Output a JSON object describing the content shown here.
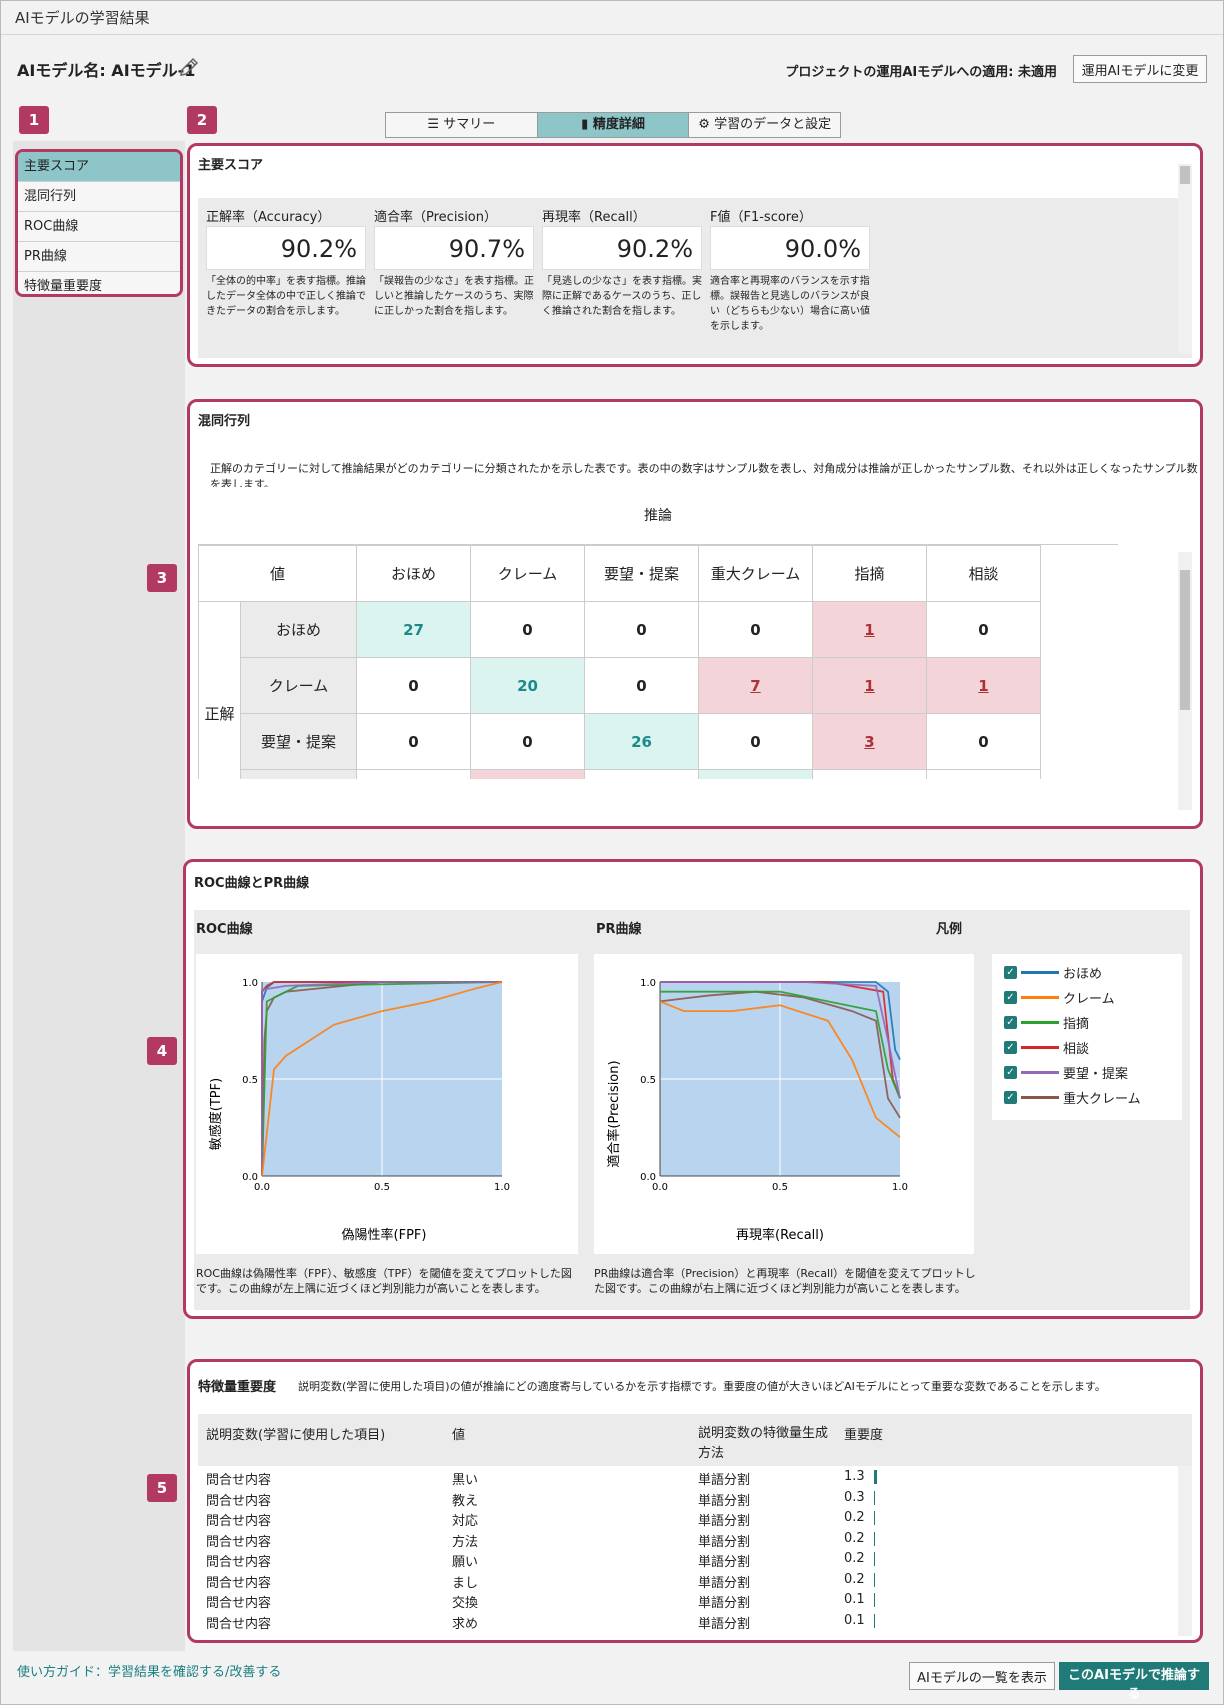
{
  "window": {
    "title": "AIモデルの学習結果"
  },
  "header": {
    "model_label": "AIモデル名: AIモデル-1",
    "apply_status": "プロジェクトの運用AIモデルへの適用: 未適用",
    "apply_button": "運用AIモデルに変更"
  },
  "markers": [
    "1",
    "2",
    "3",
    "4",
    "5"
  ],
  "tabs": [
    {
      "label": "サマリー",
      "icon": "list-icon"
    },
    {
      "label": "精度詳細",
      "icon": "bar-chart-icon",
      "active": true
    },
    {
      "label": "学習のデータと設定",
      "icon": "gear-icon"
    }
  ],
  "sidebar": {
    "items": [
      {
        "label": "主要スコア",
        "active": true
      },
      {
        "label": "混同行列"
      },
      {
        "label": "ROC曲線"
      },
      {
        "label": "PR曲線"
      },
      {
        "label": "特徴量重要度"
      }
    ]
  },
  "scores": {
    "title": "主要スコア",
    "items": [
      {
        "label": "正解率（Accuracy）",
        "value": "90.2%",
        "desc": "「全体の的中率」を表す指標。推論したデータ全体の中で正しく推論できたデータの割合を示します。"
      },
      {
        "label": "適合率（Precision）",
        "value": "90.7%",
        "desc": "「誤報告の少なさ」を表す指標。正しいと推論したケースのうち、実際に正しかった割合を指します。"
      },
      {
        "label": "再現率（Recall）",
        "value": "90.2%",
        "desc": "「見逃しの少なさ」を表す指標。実際に正解であるケースのうち、正しく推論された割合を指します。"
      },
      {
        "label": "F値（F1-score）",
        "value": "90.0%",
        "desc": "適合率と再現率のバランスを示す指標。誤報告と見逃しのバランスが良い（どちらも少ない）場合に高い値を示します。"
      }
    ]
  },
  "confusion": {
    "title": "混同行列",
    "desc": "正解のカテゴリーに対して推論結果がどのカテゴリーに分類されたかを示した表です。表の中の数字はサンプル数を表し、対角成分は推論が正しかったサンプル数、それ以外は正しくなったサンプル数を表します。",
    "pred_label": "推論",
    "value_label": "値",
    "true_label": "正解",
    "columns": [
      "おほめ",
      "クレーム",
      "要望・提案",
      "重大クレーム",
      "指摘",
      "相談"
    ],
    "rows": [
      {
        "label": "おほめ",
        "values": [
          "27",
          "0",
          "0",
          "0",
          "1",
          "0"
        ]
      },
      {
        "label": "クレーム",
        "values": [
          "0",
          "20",
          "0",
          "7",
          "1",
          "1"
        ]
      },
      {
        "label": "要望・提案",
        "values": [
          "0",
          "0",
          "26",
          "0",
          "3",
          "0"
        ]
      }
    ]
  },
  "curves": {
    "title": "ROC曲線とPR曲線",
    "roc_title": "ROC曲線",
    "pr_title": "PR曲線",
    "legend_title": "凡例",
    "roc_xlabel": "偽陽性率(FPF)",
    "roc_ylabel": "敏感度(TPF)",
    "pr_xlabel": "再現率(Recall)",
    "pr_ylabel": "適合率(Precision)",
    "ticks": [
      "0.0",
      "0.5",
      "1.0"
    ],
    "roc_desc": "ROC曲線は偽陽性率（FPF）、敏感度（TPF）を閾値を変えてプロットした図です。この曲線が左上隅に近づくほど判別能力が高いことを表します。",
    "pr_desc": "PR曲線は適合率（Precision）と再現率（Recall）を閾値を変えてプロットした図です。この曲線が右上隅に近づくほど判別能力が高いことを表します。",
    "legend": [
      {
        "name": "おほめ",
        "color": "#1f77b4"
      },
      {
        "name": "クレーム",
        "color": "#ff7f0e"
      },
      {
        "name": "指摘",
        "color": "#2ca02c"
      },
      {
        "name": "相談",
        "color": "#d62728"
      },
      {
        "name": "要望・提案",
        "color": "#9467bd"
      },
      {
        "name": "重大クレーム",
        "color": "#8c564b"
      }
    ]
  },
  "chart_data": [
    {
      "type": "line",
      "title": "ROC曲線",
      "xlabel": "偽陽性率(FPF)",
      "ylabel": "敏感度(TPF)",
      "xlim": [
        0,
        1
      ],
      "ylim": [
        0,
        1
      ],
      "series": [
        {
          "name": "おほめ",
          "x": [
            0,
            0,
            0.02,
            0.05,
            1
          ],
          "y": [
            0,
            0.9,
            0.97,
            1,
            1
          ]
        },
        {
          "name": "重大クレーム",
          "x": [
            0,
            0.01,
            0.02,
            0.05,
            0.1,
            0.5,
            1
          ],
          "y": [
            0,
            0.7,
            0.85,
            0.92,
            0.95,
            1,
            1
          ]
        },
        {
          "name": "相談",
          "x": [
            0,
            0,
            0.02,
            0.05,
            1
          ],
          "y": [
            0,
            0.95,
            0.98,
            1,
            1
          ]
        },
        {
          "name": "指摘",
          "x": [
            0,
            0.02,
            0.1,
            0.15,
            1
          ],
          "y": [
            0,
            0.9,
            0.95,
            0.98,
            1
          ]
        },
        {
          "name": "要望・提案",
          "x": [
            0,
            0,
            0.1,
            0.5,
            1
          ],
          "y": [
            0,
            0.96,
            0.98,
            1,
            1
          ]
        },
        {
          "name": "クレーム",
          "x": [
            0,
            0.05,
            0.1,
            0.2,
            0.3,
            0.5,
            0.7,
            0.9,
            1
          ],
          "y": [
            0,
            0.55,
            0.62,
            0.7,
            0.78,
            0.85,
            0.9,
            0.97,
            1
          ]
        }
      ]
    },
    {
      "type": "line",
      "title": "PR曲線",
      "xlabel": "再現率(Recall)",
      "ylabel": "適合率(Precision)",
      "xlim": [
        0,
        1
      ],
      "ylim": [
        0,
        1
      ],
      "series": [
        {
          "name": "おほめ",
          "x": [
            0,
            0.5,
            0.9,
            0.95,
            0.98,
            1
          ],
          "y": [
            1,
            1,
            1,
            0.95,
            0.65,
            0.6
          ]
        },
        {
          "name": "相談",
          "x": [
            0,
            0.7,
            0.93,
            0.97,
            1
          ],
          "y": [
            1,
            1,
            0.95,
            0.5,
            0.4
          ]
        },
        {
          "name": "重大クレーム",
          "x": [
            0,
            0.2,
            0.4,
            0.6,
            0.8,
            0.9,
            0.95,
            1
          ],
          "y": [
            0.9,
            0.93,
            0.95,
            0.92,
            0.85,
            0.8,
            0.4,
            0.3
          ]
        },
        {
          "name": "指摘",
          "x": [
            0,
            0.5,
            0.7,
            0.9,
            0.95,
            1
          ],
          "y": [
            0.95,
            0.95,
            0.9,
            0.85,
            0.55,
            0.4
          ]
        },
        {
          "name": "要望・提案",
          "x": [
            0,
            0.6,
            0.9,
            0.95,
            1
          ],
          "y": [
            1,
            1,
            0.98,
            0.7,
            0.4
          ]
        },
        {
          "name": "クレーム",
          "x": [
            0,
            0.1,
            0.3,
            0.5,
            0.7,
            0.8,
            0.9,
            1
          ],
          "y": [
            0.9,
            0.85,
            0.85,
            0.88,
            0.8,
            0.6,
            0.3,
            0.2
          ]
        }
      ]
    },
    {
      "type": "bar",
      "title": "特徴量重要度",
      "categories": [
        "黒い",
        "教え",
        "対応",
        "方法",
        "願い",
        "まし",
        "交換",
        "求め"
      ],
      "values": [
        1.3,
        0.3,
        0.2,
        0.2,
        0.2,
        0.2,
        0.1,
        0.1
      ]
    }
  ],
  "importance": {
    "title": "特徴量重要度",
    "desc": "説明変数(学習に使用した項目)の値が推論にどの適度寄与しているかを示す指標です。重要度の値が大きいほどAIモデルにとって重要な変数であることを示します。",
    "headers": [
      "説明変数(学習に使用した項目)",
      "値",
      "説明変数の特徴量生成方法",
      "重要度"
    ],
    "rows": [
      {
        "var": "問合せ内容",
        "val": "黒い",
        "method": "単語分割",
        "imp": "1.3"
      },
      {
        "var": "問合せ内容",
        "val": "教え",
        "method": "単語分割",
        "imp": "0.3"
      },
      {
        "var": "問合せ内容",
        "val": "対応",
        "method": "単語分割",
        "imp": "0.2"
      },
      {
        "var": "問合せ内容",
        "val": "方法",
        "method": "単語分割",
        "imp": "0.2"
      },
      {
        "var": "問合せ内容",
        "val": "願い",
        "method": "単語分割",
        "imp": "0.2"
      },
      {
        "var": "問合せ内容",
        "val": "まし",
        "method": "単語分割",
        "imp": "0.2"
      },
      {
        "var": "問合せ内容",
        "val": "交換",
        "method": "単語分割",
        "imp": "0.1"
      },
      {
        "var": "問合せ内容",
        "val": "求め",
        "method": "単語分割",
        "imp": "0.1"
      }
    ]
  },
  "footer": {
    "guide_link": "使い方ガイド：学習結果を確認する/改善する",
    "list_button": "AIモデルの一覧を表示",
    "infer_button": "このAIモデルで推論する"
  }
}
